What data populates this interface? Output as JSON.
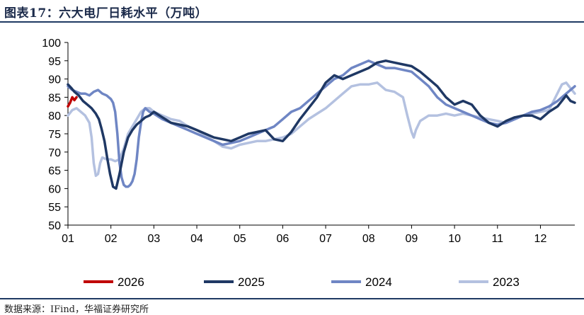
{
  "title": "图表17：六大电厂日耗水平（万吨）",
  "source": "数据来源：IFind，华福证券研究所",
  "chart_data": {
    "type": "line",
    "title": "图表17：六大电厂日耗水平（万吨）",
    "xlabel": "",
    "ylabel": "",
    "ylim": [
      50,
      100
    ],
    "yticks": [
      50,
      55,
      60,
      65,
      70,
      75,
      80,
      85,
      90,
      95,
      100
    ],
    "xlim": [
      1,
      12.8
    ],
    "xticks": [
      "01",
      "02",
      "03",
      "04",
      "05",
      "06",
      "07",
      "08",
      "09",
      "10",
      "11",
      "12"
    ],
    "grid": false,
    "legend": "bottom",
    "series": [
      {
        "name": "2026",
        "color": "#c00000",
        "x": [
          1.0,
          1.05,
          1.1,
          1.15,
          1.2
        ],
        "y": [
          82.5,
          83.5,
          85.0,
          84.2,
          85.0
        ]
      },
      {
        "name": "2025",
        "color": "#1f3864",
        "x": [
          1.0,
          1.08,
          1.15,
          1.25,
          1.35,
          1.45,
          1.55,
          1.65,
          1.72,
          1.78,
          1.85,
          1.92,
          1.98,
          2.05,
          2.12,
          2.2,
          2.3,
          2.4,
          2.5,
          2.6,
          2.7,
          2.8,
          2.9,
          3.0,
          3.2,
          3.4,
          3.6,
          3.8,
          4.0,
          4.2,
          4.4,
          4.6,
          4.8,
          5.0,
          5.2,
          5.4,
          5.6,
          5.8,
          6.0,
          6.2,
          6.4,
          6.6,
          6.8,
          7.0,
          7.2,
          7.4,
          7.6,
          7.8,
          8.0,
          8.2,
          8.4,
          8.6,
          8.8,
          9.0,
          9.2,
          9.4,
          9.6,
          9.8,
          10.0,
          10.2,
          10.4,
          10.6,
          10.8,
          11.0,
          11.2,
          11.4,
          11.6,
          11.8,
          12.0,
          12.2,
          12.4,
          12.5,
          12.6,
          12.7,
          12.8
        ],
        "y": [
          88.5,
          87.5,
          86.5,
          85.5,
          84.0,
          83.0,
          82.0,
          80.5,
          79.0,
          76.5,
          73.0,
          68.0,
          64.0,
          60.5,
          60.0,
          64.0,
          70.0,
          74.0,
          76.0,
          77.5,
          78.5,
          79.5,
          80.0,
          81.0,
          79.5,
          78.0,
          77.5,
          77.0,
          76.0,
          75.0,
          74.0,
          73.5,
          73.0,
          74.0,
          75.0,
          75.5,
          76.0,
          73.5,
          73.0,
          75.5,
          79.0,
          82.0,
          85.0,
          89.0,
          91.0,
          90.0,
          91.0,
          92.0,
          93.0,
          94.5,
          95.0,
          94.5,
          94.0,
          93.5,
          92.0,
          90.0,
          88.0,
          85.0,
          83.0,
          84.0,
          83.0,
          80.0,
          78.0,
          77.0,
          78.5,
          79.5,
          80.0,
          80.0,
          79.0,
          81.0,
          82.5,
          84.0,
          85.5,
          84.0,
          83.5
        ]
      },
      {
        "name": "2024",
        "color": "#6f86c4",
        "x": [
          1.0,
          1.1,
          1.2,
          1.3,
          1.4,
          1.5,
          1.6,
          1.7,
          1.8,
          1.9,
          2.0,
          2.05,
          2.1,
          2.15,
          2.2,
          2.25,
          2.3,
          2.35,
          2.4,
          2.45,
          2.5,
          2.55,
          2.6,
          2.65,
          2.7,
          2.75,
          2.8,
          2.9,
          3.0,
          3.2,
          3.4,
          3.6,
          3.8,
          4.0,
          4.2,
          4.4,
          4.6,
          4.8,
          5.0,
          5.2,
          5.4,
          5.6,
          5.8,
          6.0,
          6.2,
          6.4,
          6.6,
          6.8,
          7.0,
          7.2,
          7.4,
          7.6,
          7.8,
          8.0,
          8.2,
          8.4,
          8.6,
          8.8,
          9.0,
          9.2,
          9.4,
          9.6,
          9.8,
          10.0,
          10.2,
          10.4,
          10.6,
          10.8,
          11.0,
          11.2,
          11.4,
          11.6,
          11.8,
          12.0,
          12.2,
          12.4,
          12.6,
          12.8
        ],
        "y": [
          88.0,
          87.0,
          86.5,
          86.0,
          86.0,
          85.5,
          86.5,
          87.0,
          86.0,
          85.5,
          84.5,
          83.5,
          81.0,
          75.0,
          67.0,
          63.0,
          61.0,
          60.5,
          60.5,
          61.0,
          62.0,
          64.0,
          68.0,
          74.0,
          78.0,
          81.0,
          82.0,
          81.0,
          80.5,
          79.0,
          78.0,
          77.0,
          76.0,
          75.0,
          74.0,
          73.0,
          72.0,
          72.5,
          73.0,
          74.0,
          75.0,
          76.0,
          77.0,
          79.0,
          81.0,
          82.0,
          84.0,
          86.0,
          88.0,
          90.0,
          91.0,
          93.0,
          94.0,
          95.0,
          94.0,
          93.0,
          93.0,
          92.5,
          92.0,
          90.0,
          88.0,
          85.0,
          83.0,
          82.0,
          81.0,
          80.0,
          79.0,
          78.0,
          77.5,
          78.0,
          79.0,
          80.0,
          81.0,
          81.5,
          82.5,
          84.0,
          86.0,
          88.0
        ]
      },
      {
        "name": "2023",
        "color": "#b4c1e0",
        "x": [
          1.0,
          1.1,
          1.2,
          1.3,
          1.4,
          1.5,
          1.55,
          1.6,
          1.65,
          1.7,
          1.75,
          1.8,
          1.9,
          2.0,
          2.1,
          2.2,
          2.3,
          2.4,
          2.5,
          2.6,
          2.7,
          2.8,
          2.9,
          3.0,
          3.2,
          3.4,
          3.6,
          3.8,
          4.0,
          4.2,
          4.4,
          4.6,
          4.8,
          5.0,
          5.2,
          5.4,
          5.6,
          5.8,
          6.0,
          6.2,
          6.4,
          6.6,
          6.8,
          7.0,
          7.2,
          7.4,
          7.6,
          7.8,
          8.0,
          8.2,
          8.4,
          8.6,
          8.8,
          8.9,
          9.0,
          9.05,
          9.1,
          9.2,
          9.4,
          9.6,
          9.8,
          10.0,
          10.2,
          10.4,
          10.6,
          10.8,
          11.0,
          11.2,
          11.4,
          11.6,
          11.8,
          12.0,
          12.2,
          12.35,
          12.5,
          12.6,
          12.7,
          12.8
        ],
        "y": [
          80.0,
          81.5,
          82.0,
          81.0,
          80.0,
          78.0,
          74.0,
          67.0,
          63.5,
          64.0,
          67.0,
          68.5,
          68.0,
          68.0,
          67.5,
          68.0,
          71.0,
          75.0,
          77.0,
          79.0,
          81.0,
          82.0,
          82.0,
          81.0,
          80.0,
          79.0,
          78.5,
          77.0,
          76.0,
          74.5,
          73.0,
          71.5,
          71.0,
          72.0,
          72.5,
          73.0,
          73.0,
          73.5,
          74.0,
          75.0,
          77.0,
          79.0,
          80.5,
          82.0,
          84.0,
          86.0,
          88.0,
          88.5,
          88.5,
          89.0,
          87.0,
          86.5,
          85.0,
          80.0,
          75.5,
          74.0,
          76.0,
          78.5,
          80.0,
          80.0,
          80.5,
          80.0,
          80.5,
          80.0,
          79.5,
          79.0,
          78.5,
          78.0,
          79.0,
          80.0,
          80.5,
          81.0,
          81.5,
          85.0,
          88.5,
          89.0,
          87.5,
          86.0
        ]
      }
    ]
  }
}
